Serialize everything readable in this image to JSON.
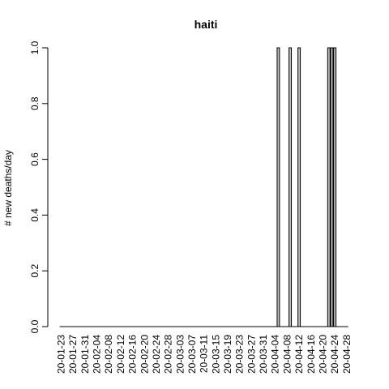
{
  "chart_data": {
    "type": "bar",
    "title": "haiti",
    "xlabel": "",
    "ylabel": "# new deaths/day",
    "ylim": [
      0,
      1
    ],
    "yticks": [
      "0.0",
      "0.2",
      "0.4",
      "0.6",
      "0.8",
      "1.0"
    ],
    "x_start": "2020-01-23",
    "x_end": "2020-04-28",
    "xtick_labels": [
      "20-01-23",
      "20-01-27",
      "20-01-31",
      "20-02-04",
      "20-02-08",
      "20-02-12",
      "20-02-16",
      "20-02-20",
      "20-02-24",
      "20-02-28",
      "20-03-03",
      "20-03-07",
      "20-03-11",
      "20-03-15",
      "20-03-19",
      "20-03-23",
      "20-03-27",
      "20-03-31",
      "20-04-04",
      "20-04-08",
      "20-04-12",
      "20-04-16",
      "20-04-20",
      "20-04-24",
      "20-04-28"
    ],
    "series": [
      {
        "values": [
          {
            "date": "2020-04-05",
            "value": 1
          },
          {
            "date": "2020-04-09",
            "value": 1
          },
          {
            "date": "2020-04-12",
            "value": 1
          },
          {
            "date": "2020-04-22",
            "value": 1
          },
          {
            "date": "2020-04-23",
            "value": 1
          },
          {
            "date": "2020-04-24",
            "value": 1
          }
        ]
      }
    ],
    "bar_fill": "#bebebe",
    "bar_stroke": "#000000",
    "grid": false,
    "legend": "none"
  }
}
